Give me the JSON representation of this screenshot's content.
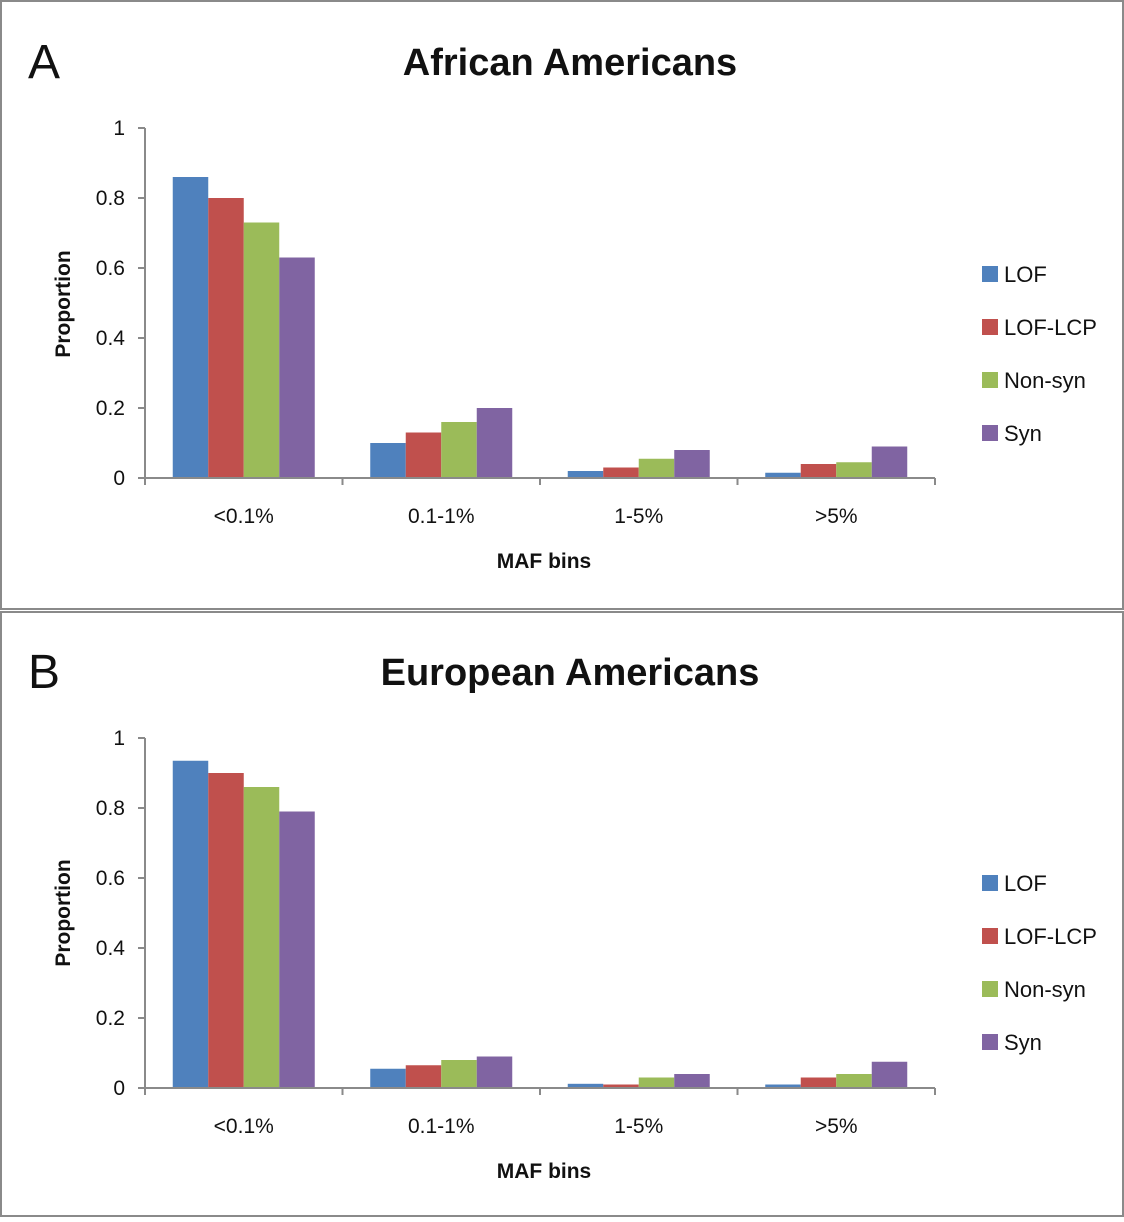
{
  "figure": {
    "panel_letters": [
      "A",
      "B"
    ]
  },
  "chart_data": [
    {
      "type": "bar",
      "title": "African Americans",
      "xlabel": "MAF bins",
      "ylabel": "Proportion",
      "categories": [
        "<0.1%",
        "0.1-1%",
        "1-5%",
        ">5%"
      ],
      "ylim": [
        0,
        1
      ],
      "yticks": [
        "0",
        "0.2",
        "0.4",
        "0.6",
        "0.8",
        "1"
      ],
      "grid": false,
      "legend_position": "right",
      "series": [
        {
          "name": "LOF",
          "color": "#4f81bd",
          "values": [
            0.86,
            0.1,
            0.02,
            0.015
          ]
        },
        {
          "name": "LOF-LCP",
          "color": "#c0504d",
          "values": [
            0.8,
            0.13,
            0.03,
            0.04
          ]
        },
        {
          "name": "Non-syn",
          "color": "#9bbb59",
          "values": [
            0.73,
            0.16,
            0.055,
            0.045
          ]
        },
        {
          "name": "Syn",
          "color": "#8064a2",
          "values": [
            0.63,
            0.2,
            0.08,
            0.09
          ]
        }
      ]
    },
    {
      "type": "bar",
      "title": "European Americans",
      "xlabel": "MAF bins",
      "ylabel": "Proportion",
      "categories": [
        "<0.1%",
        "0.1-1%",
        "1-5%",
        ">5%"
      ],
      "ylim": [
        0,
        1
      ],
      "yticks": [
        "0",
        "0.2",
        "0.4",
        "0.6",
        "0.8",
        "1"
      ],
      "grid": false,
      "legend_position": "right",
      "series": [
        {
          "name": "LOF",
          "color": "#4f81bd",
          "values": [
            0.935,
            0.055,
            0.012,
            0.01
          ]
        },
        {
          "name": "LOF-LCP",
          "color": "#c0504d",
          "values": [
            0.9,
            0.065,
            0.01,
            0.03
          ]
        },
        {
          "name": "Non-syn",
          "color": "#9bbb59",
          "values": [
            0.86,
            0.08,
            0.03,
            0.04
          ]
        },
        {
          "name": "Syn",
          "color": "#8064a2",
          "values": [
            0.79,
            0.09,
            0.04,
            0.075
          ]
        }
      ]
    }
  ]
}
